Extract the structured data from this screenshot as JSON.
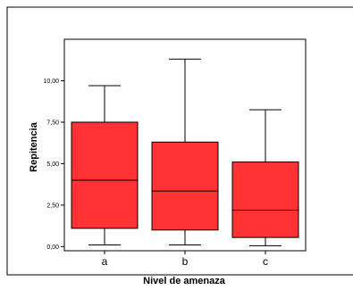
{
  "chart_data": {
    "type": "box",
    "title": "",
    "xlabel": "Nivel de amenaza",
    "ylabel": "Repitencia",
    "categories": [
      "a",
      "b",
      "c"
    ],
    "ylim": [
      -0.25,
      12.5
    ],
    "yticks": [
      0.0,
      2.5,
      5.0,
      7.5,
      10.0
    ],
    "ytick_labels": [
      "0,00",
      "2,50",
      "5,00",
      "7,50",
      "10,00"
    ],
    "boxes": [
      {
        "category": "a",
        "min": 0.1,
        "q1": 1.1,
        "median": 4.0,
        "q3": 7.5,
        "max": 9.7
      },
      {
        "category": "b",
        "min": 0.1,
        "q1": 1.0,
        "median": 3.35,
        "q3": 6.3,
        "max": 11.3
      },
      {
        "category": "c",
        "min": 0.05,
        "q1": 0.55,
        "median": 2.2,
        "q3": 5.1,
        "max": 8.25
      }
    ],
    "box_color": "#ff3333",
    "grid": false,
    "legend": "none"
  }
}
